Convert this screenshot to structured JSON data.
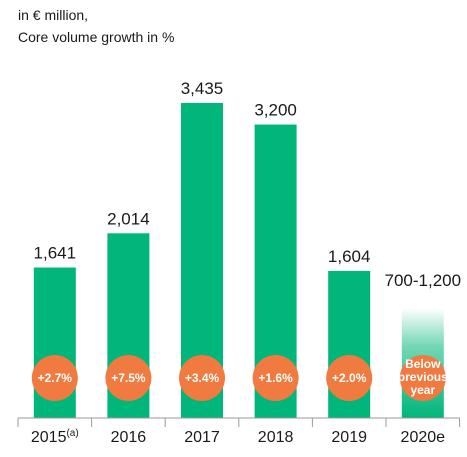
{
  "header": {
    "unit_line": "in € million,",
    "growth_line": "Core volume growth in %"
  },
  "colors": {
    "bar": "#00b67a",
    "badge": "#f07a3f",
    "axis": "#9a9a9a"
  },
  "chart_data": {
    "type": "bar",
    "categories": [
      "2015",
      "2016",
      "2017",
      "2018",
      "2019",
      "2020e"
    ],
    "category_notes": [
      "(a)",
      "",
      "",
      "",
      "",
      ""
    ],
    "values": [
      1641,
      2014,
      3435,
      3200,
      1604,
      null
    ],
    "value_labels": [
      "1,641",
      "2,014",
      "3,435",
      "3,200",
      "1,604",
      "700-1,200"
    ],
    "guidance_range": [
      700,
      1200
    ],
    "growth_labels": [
      "+2.7%",
      "+7.5%",
      "+3.4%",
      "+1.6%",
      "+2.0%",
      "Below previous year"
    ],
    "ylim": [
      0,
      3435
    ],
    "grid": false,
    "legend": "none",
    "xlabel": "",
    "ylabel": ""
  }
}
